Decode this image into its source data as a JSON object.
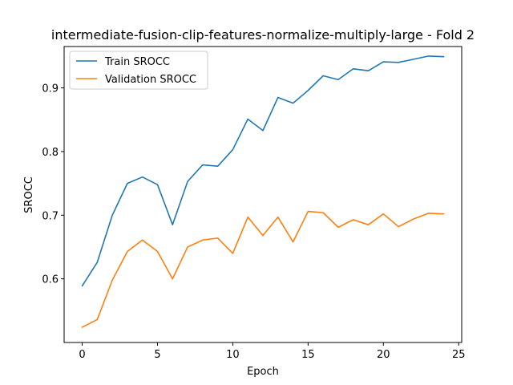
{
  "chart_data": {
    "type": "line",
    "title": "intermediate-fusion-clip-features-normalize-multiply-large - Fold 2",
    "xlabel": "Epoch",
    "ylabel": "SROCC",
    "xlim": [
      -1.2,
      25.2
    ],
    "ylim": [
      0.5,
      0.965
    ],
    "xticks": [
      0,
      5,
      10,
      15,
      20,
      25
    ],
    "yticks": [
      0.6,
      0.7,
      0.8,
      0.9
    ],
    "ytick_labels": [
      "0.6",
      "0.7",
      "0.8",
      "0.9"
    ],
    "grid": false,
    "legend_position": "upper-left",
    "x": [
      0,
      1,
      2,
      3,
      4,
      5,
      6,
      7,
      8,
      9,
      10,
      11,
      12,
      13,
      14,
      15,
      16,
      17,
      18,
      19,
      20,
      21,
      22,
      23,
      24
    ],
    "series": [
      {
        "name": "Train SROCC",
        "color": "#1f77b4",
        "values": [
          0.589,
          0.626,
          0.7,
          0.75,
          0.76,
          0.748,
          0.685,
          0.753,
          0.779,
          0.777,
          0.803,
          0.851,
          0.833,
          0.885,
          0.876,
          0.896,
          0.919,
          0.913,
          0.93,
          0.927,
          0.941,
          0.94,
          0.945,
          0.95,
          0.949
        ]
      },
      {
        "name": "Validation SROCC",
        "color": "#ff7f0e",
        "values": [
          0.524,
          0.536,
          0.598,
          0.643,
          0.661,
          0.643,
          0.6,
          0.65,
          0.661,
          0.664,
          0.64,
          0.697,
          0.668,
          0.697,
          0.658,
          0.706,
          0.704,
          0.681,
          0.693,
          0.685,
          0.702,
          0.682,
          0.694,
          0.703,
          0.702
        ]
      }
    ]
  }
}
